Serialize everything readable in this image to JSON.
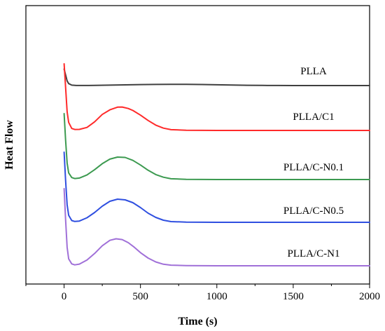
{
  "chart_data": {
    "type": "line",
    "title": "",
    "xlabel": "Time (s)",
    "ylabel": "Heat Flow",
    "xlim": [
      -250,
      2000
    ],
    "x_ticks": [
      0,
      500,
      1000,
      1500,
      2000
    ],
    "y_ticks_shown": false,
    "grid": false,
    "legend": "inline labels at right",
    "series": [
      {
        "name": "PLLA",
        "color": "#404040",
        "x": [
          0,
          10,
          20,
          30,
          50,
          80,
          120,
          200,
          300,
          400,
          500,
          600,
          700,
          750,
          800,
          900,
          1000,
          1100,
          1200,
          1300,
          1400,
          1500,
          1600,
          1800,
          2000
        ],
        "y": [
          100,
          65,
          28,
          12,
          2.5,
          0.6,
          0.4,
          1.0,
          2.6,
          4.2,
          5.8,
          7.0,
          7.6,
          7.7,
          7.5,
          6.5,
          4.8,
          3.0,
          1.6,
          0.7,
          0.25,
          0.1,
          0.05,
          0.0,
          0.0
        ]
      },
      {
        "name": "PLLA/C1",
        "color": "#ff2a2a",
        "x": [
          0,
          10,
          20,
          30,
          50,
          70,
          100,
          150,
          200,
          250,
          300,
          350,
          380,
          420,
          450,
          500,
          550,
          600,
          650,
          700,
          800,
          1000,
          1500,
          2000
        ],
        "y": [
          100,
          65,
          28,
          12,
          3.0,
          1.5,
          1.6,
          4.5,
          13,
          24,
          31,
          35,
          35.2,
          33,
          30,
          23,
          15,
          8,
          3.5,
          1.2,
          0.3,
          0.0,
          0.0,
          0.0
        ]
      },
      {
        "name": "PLLA/C-N0.1",
        "color": "#3c9a50",
        "x": [
          0,
          10,
          20,
          30,
          50,
          70,
          100,
          150,
          200,
          250,
          300,
          350,
          400,
          450,
          500,
          550,
          600,
          650,
          700,
          800,
          1000,
          1500,
          2000
        ],
        "y": [
          100,
          60,
          25,
          10,
          3.0,
          1.5,
          2.2,
          7.0,
          15,
          24,
          31,
          34,
          33.5,
          29,
          22,
          14,
          7.5,
          3.5,
          1.2,
          0.3,
          0.0,
          0.0,
          0.0
        ]
      },
      {
        "name": "PLLA/C-N0.5",
        "color": "#2f4fe0",
        "x": [
          0,
          10,
          20,
          30,
          50,
          70,
          100,
          150,
          200,
          250,
          300,
          350,
          400,
          450,
          500,
          550,
          600,
          650,
          700,
          800,
          1000,
          1500,
          2000
        ],
        "y": [
          100,
          60,
          25,
          10,
          2.5,
          1.2,
          1.8,
          6.5,
          14,
          23,
          30,
          33,
          32,
          28,
          21,
          13,
          7,
          3,
          1.0,
          0.3,
          0.0,
          0.0,
          0.0
        ]
      },
      {
        "name": "PLLA/C-N1",
        "color": "#a070d8",
        "x": [
          0,
          10,
          20,
          30,
          50,
          70,
          100,
          150,
          200,
          250,
          300,
          340,
          380,
          420,
          460,
          500,
          550,
          600,
          650,
          700,
          800,
          1000,
          1500,
          2000
        ],
        "y": [
          100,
          60,
          24,
          9,
          2.5,
          1.2,
          2.2,
          7.5,
          16,
          26,
          33,
          35,
          34,
          30,
          24,
          17,
          10,
          5,
          2,
          0.8,
          0.3,
          0.0,
          0.0,
          0.0
        ]
      }
    ]
  }
}
